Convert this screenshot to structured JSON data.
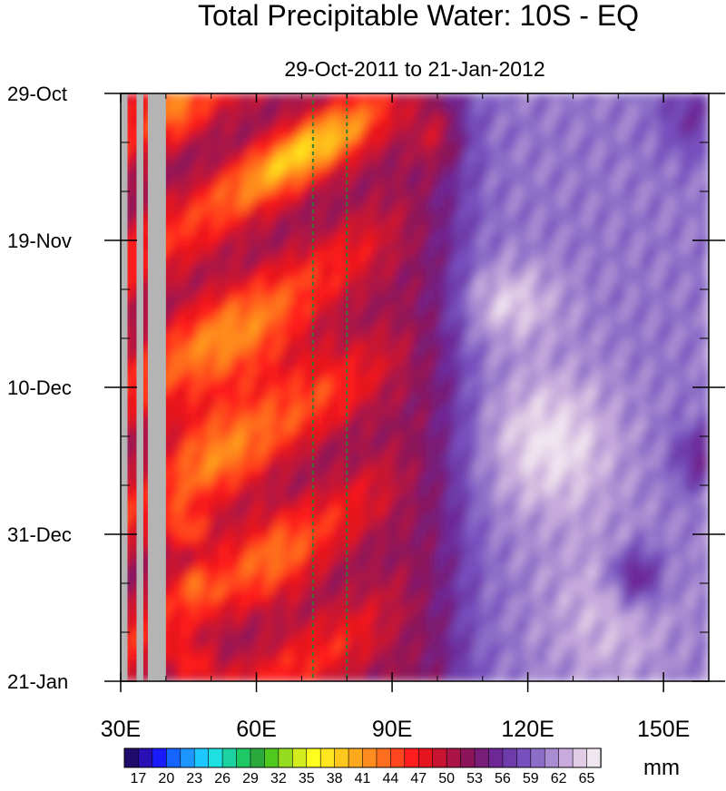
{
  "chart_data": {
    "type": "heatmap",
    "title": "Total Precipitable Water: 10S - EQ",
    "subtitle": "29-Oct-2011 to 21-Jan-2012",
    "x_axis": {
      "range": [
        30,
        160
      ],
      "unit": "degrees E",
      "tick_labels": [
        "30E",
        "60E",
        "90E",
        "120E",
        "150E"
      ],
      "tick_values": [
        30,
        60,
        90,
        120,
        150
      ]
    },
    "y_axis": {
      "range_days": [
        0,
        84
      ],
      "direction": "down",
      "tick_labels": [
        "29-Oct",
        "19-Nov",
        "10-Dec",
        "31-Dec",
        "21-Jan"
      ],
      "tick_days": [
        0,
        21,
        42,
        63,
        84
      ]
    },
    "reference_lines": {
      "longitudes": [
        72.5,
        80
      ],
      "color": "#2e7d32",
      "style": "dotted"
    },
    "colorbar": {
      "unit": "mm",
      "tick_labels": [
        "17",
        "20",
        "23",
        "26",
        "29",
        "32",
        "35",
        "38",
        "41",
        "44",
        "47",
        "50",
        "53",
        "56",
        "59",
        "62",
        "65"
      ],
      "colors": [
        "#1e0b6b",
        "#2810b4",
        "#1a1aff",
        "#1464ff",
        "#1e96ff",
        "#1cc8ff",
        "#1ee0e0",
        "#1cd2a0",
        "#1ec864",
        "#2aaa3c",
        "#50c81e",
        "#96dc1e",
        "#d2ec1e",
        "#ffff1e",
        "#ffe61e",
        "#ffc81e",
        "#ffaa1e",
        "#ff8c1e",
        "#ff6e1e",
        "#ff461e",
        "#ff1e1e",
        "#e6141e",
        "#c81432",
        "#aa1446",
        "#8c145a",
        "#781e78",
        "#6e2896",
        "#6e3caa",
        "#7850be",
        "#8c6ec8",
        "#aa8cd2",
        "#c8aadc",
        "#e1cde6",
        "#f0e6f0"
      ]
    },
    "land_mask": {
      "color": "#b4b4b4",
      "longitude_bands": [
        [
          30,
          31.5
        ],
        [
          33.5,
          35
        ],
        [
          36,
          40
        ]
      ]
    },
    "field_description": {
      "high_values": "east of ~105E (purple)",
      "low_values": "westward-propagating yellow/green streaks west of ~105E",
      "data_grid": {
        "lons": [
          30,
          40,
          50,
          60,
          70,
          80,
          90,
          100,
          110,
          120,
          130,
          140,
          150,
          160
        ],
        "days": [
          0,
          7,
          14,
          21,
          28,
          35,
          42,
          49,
          56,
          63,
          70,
          77,
          84
        ]
      }
    }
  }
}
